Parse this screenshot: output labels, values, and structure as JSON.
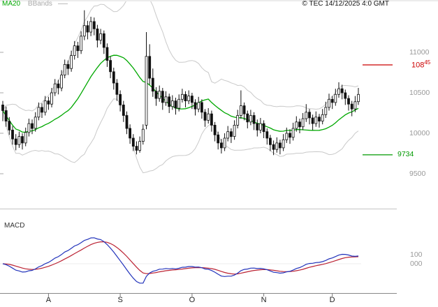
{
  "header": {
    "legend": [
      {
        "label": "MA20",
        "color": "#00A800"
      },
      {
        "label": "BBands",
        "color": "#A8A8A8"
      }
    ],
    "copyright": "© TEC 14/12/2025 4:0 GMT"
  },
  "colors": {
    "ma20": "#00A800",
    "bbands": "#C9C9C9",
    "candle": "#111111",
    "macd_line": "#2233BB",
    "macd_signal": "#BB2233",
    "ref_high": "#CC0000",
    "ref_low": "#009900",
    "axis_text": "#999999"
  },
  "price_panel": {
    "y_labels": [
      {
        "text": "11000",
        "value": 11000
      },
      {
        "text": "10500",
        "value": 10500
      },
      {
        "text": "10000",
        "value": 10000
      },
      {
        "text": "9500",
        "value": 9500
      }
    ],
    "ref_lines": [
      {
        "label_main": "108",
        "label_sup": "45",
        "value": 10845,
        "color": "#CC0000"
      },
      {
        "label_main": "9734",
        "label_sup": "",
        "value": 9734,
        "color": "#009900"
      }
    ]
  },
  "macd_panel": {
    "label": "MACD",
    "y_labels": [
      {
        "text": "100",
        "value": 100
      },
      {
        "text": "000",
        "value": 0
      }
    ]
  },
  "x_axis": {
    "labels": [
      {
        "text": "A",
        "index": 14
      },
      {
        "text": "S",
        "index": 36
      },
      {
        "text": "O",
        "index": 58
      },
      {
        "text": "N",
        "index": 80
      },
      {
        "text": "D",
        "index": 101
      }
    ]
  },
  "chart_data": {
    "type": "candlestick",
    "title": "",
    "y_ticks": [
      11000,
      10500,
      10000,
      9500
    ],
    "y_range": [
      9190,
      11650
    ],
    "x_month_labels": [
      "A",
      "S",
      "O",
      "N",
      "D"
    ],
    "overlays": [
      {
        "name": "MA20",
        "type": "sma",
        "period": 20
      },
      {
        "name": "BBands",
        "type": "bollinger",
        "period": 20,
        "stddev": 2
      }
    ],
    "indicator": {
      "name": "MACD",
      "fast": 12,
      "slow": 26,
      "signal": 9,
      "shown_levels": [
        100,
        0
      ]
    },
    "ohlc": [
      [
        10350,
        10400,
        10150,
        10280
      ],
      [
        10280,
        10330,
        10080,
        10150
      ],
      [
        10150,
        10200,
        9980,
        10040
      ],
      [
        10040,
        10090,
        9860,
        9930
      ],
      [
        9930,
        9990,
        9790,
        9860
      ],
      [
        9860,
        10020,
        9820,
        9960
      ],
      [
        9960,
        10000,
        9800,
        9880
      ],
      [
        9880,
        10070,
        9840,
        10010
      ],
      [
        10010,
        10180,
        9960,
        10120
      ],
      [
        10120,
        10170,
        9990,
        10060
      ],
      [
        10060,
        10260,
        10020,
        10200
      ],
      [
        10200,
        10380,
        10160,
        10320
      ],
      [
        10320,
        10370,
        10190,
        10260
      ],
      [
        10260,
        10460,
        10220,
        10400
      ],
      [
        10400,
        10450,
        10290,
        10360
      ],
      [
        10360,
        10560,
        10320,
        10500
      ],
      [
        10500,
        10670,
        10460,
        10610
      ],
      [
        10610,
        10660,
        10480,
        10560
      ],
      [
        10560,
        10780,
        10520,
        10720
      ],
      [
        10720,
        10910,
        10680,
        10850
      ],
      [
        10850,
        10900,
        10720,
        10800
      ],
      [
        10800,
        11020,
        10760,
        10960
      ],
      [
        10960,
        11140,
        10910,
        11080
      ],
      [
        11080,
        11130,
        10930,
        11020
      ],
      [
        11020,
        11260,
        10980,
        11200
      ],
      [
        11200,
        11520,
        11150,
        11330
      ],
      [
        11330,
        11390,
        11160,
        11250
      ],
      [
        11250,
        11440,
        11200,
        11380
      ],
      [
        11380,
        11430,
        11210,
        11290
      ],
      [
        11290,
        11340,
        11060,
        11150
      ],
      [
        11150,
        11290,
        11100,
        11230
      ],
      [
        11230,
        11270,
        10980,
        11060
      ],
      [
        11060,
        11110,
        10820,
        10900
      ],
      [
        10900,
        10950,
        10680,
        10760
      ],
      [
        10760,
        10810,
        10540,
        10620
      ],
      [
        10620,
        10670,
        10400,
        10480
      ],
      [
        10480,
        10530,
        10270,
        10350
      ],
      [
        10350,
        10400,
        10140,
        10220
      ],
      [
        10220,
        10270,
        9990,
        10060
      ],
      [
        10060,
        10110,
        9870,
        9940
      ],
      [
        9940,
        9990,
        9780,
        9840
      ],
      [
        9840,
        9900,
        9740,
        9790
      ],
      [
        9790,
        9960,
        9760,
        9900
      ],
      [
        9900,
        10110,
        9860,
        10050
      ],
      [
        10100,
        11250,
        10050,
        10950
      ],
      [
        10950,
        11100,
        10600,
        10680
      ],
      [
        10680,
        10800,
        10450,
        10520
      ],
      [
        10520,
        10570,
        10340,
        10430
      ],
      [
        10430,
        10590,
        10390,
        10520
      ],
      [
        10520,
        10560,
        10290,
        10380
      ],
      [
        10380,
        10520,
        10340,
        10450
      ],
      [
        10450,
        10490,
        10250,
        10330
      ],
      [
        10330,
        10470,
        10290,
        10400
      ],
      [
        10400,
        10440,
        10230,
        10310
      ],
      [
        10310,
        10480,
        10270,
        10420
      ],
      [
        10420,
        10550,
        10380,
        10480
      ],
      [
        10480,
        10520,
        10320,
        10400
      ],
      [
        10400,
        10530,
        10360,
        10460
      ],
      [
        10460,
        10500,
        10300,
        10380
      ],
      [
        10380,
        10420,
        10220,
        10300
      ],
      [
        10300,
        10450,
        10260,
        10380
      ],
      [
        10380,
        10420,
        10180,
        10260
      ],
      [
        10260,
        10300,
        10080,
        10160
      ],
      [
        10160,
        10310,
        10120,
        10240
      ],
      [
        10240,
        10280,
        10020,
        10100
      ],
      [
        10100,
        10140,
        9900,
        9980
      ],
      [
        9980,
        10020,
        9800,
        9880
      ],
      [
        9880,
        9930,
        9750,
        9820
      ],
      [
        9820,
        10000,
        9780,
        9940
      ],
      [
        9940,
        10090,
        9900,
        10020
      ],
      [
        10020,
        10060,
        9880,
        9960
      ],
      [
        9960,
        10160,
        9920,
        10100
      ],
      [
        10100,
        10290,
        10060,
        10220
      ],
      [
        10220,
        10530,
        10180,
        10340
      ],
      [
        10340,
        10380,
        10160,
        10240
      ],
      [
        10240,
        10280,
        10060,
        10140
      ],
      [
        10140,
        10290,
        10100,
        10220
      ],
      [
        10220,
        10260,
        10040,
        10120
      ],
      [
        10120,
        10170,
        9960,
        10040
      ],
      [
        10040,
        10190,
        10000,
        10120
      ],
      [
        10120,
        10160,
        9940,
        10020
      ],
      [
        10020,
        10060,
        9860,
        9940
      ],
      [
        9940,
        9980,
        9780,
        9860
      ],
      [
        9860,
        9910,
        9730,
        9800
      ],
      [
        9800,
        9950,
        9760,
        9880
      ],
      [
        9880,
        9920,
        9740,
        9820
      ],
      [
        9820,
        9990,
        9780,
        9920
      ],
      [
        9920,
        10070,
        9880,
        10000
      ],
      [
        10000,
        10050,
        9870,
        9950
      ],
      [
        9950,
        10130,
        9910,
        10060
      ],
      [
        10060,
        10210,
        10020,
        10140
      ],
      [
        10140,
        10180,
        10000,
        10080
      ],
      [
        10080,
        10250,
        10040,
        10180
      ],
      [
        10180,
        10360,
        10140,
        10260
      ],
      [
        10260,
        10300,
        10110,
        10190
      ],
      [
        10190,
        10230,
        10040,
        10120
      ],
      [
        10120,
        10270,
        10080,
        10200
      ],
      [
        10200,
        10240,
        10070,
        10150
      ],
      [
        10150,
        10300,
        10110,
        10230
      ],
      [
        10230,
        10390,
        10190,
        10320
      ],
      [
        10320,
        10490,
        10280,
        10420
      ],
      [
        10420,
        10460,
        10300,
        10380
      ],
      [
        10380,
        10550,
        10340,
        10480
      ],
      [
        10480,
        10630,
        10440,
        10550
      ],
      [
        10550,
        10600,
        10420,
        10500
      ],
      [
        10500,
        10540,
        10350,
        10430
      ],
      [
        10430,
        10470,
        10280,
        10360
      ],
      [
        10360,
        10400,
        10210,
        10300
      ],
      [
        10300,
        10460,
        10260,
        10390
      ],
      [
        10390,
        10560,
        10350,
        10480
      ]
    ]
  }
}
